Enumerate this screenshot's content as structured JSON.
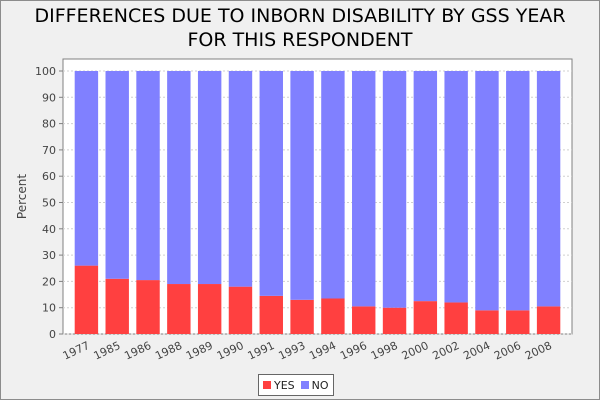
{
  "chart_data": {
    "type": "bar",
    "stacked": true,
    "title": "DIFFERENCES DUE TO INBORN DISABILITY BY GSS YEAR\nFOR THIS RESPONDENT",
    "xlabel": "",
    "ylabel": "Percent",
    "ylim": [
      0,
      100
    ],
    "yticks": [
      0,
      10,
      20,
      30,
      40,
      50,
      60,
      70,
      80,
      90,
      100
    ],
    "grid": true,
    "legend_position": "bottom-center",
    "categories": [
      "1977",
      "1985",
      "1986",
      "1988",
      "1989",
      "1990",
      "1991",
      "1993",
      "1994",
      "1996",
      "1998",
      "2000",
      "2002",
      "2004",
      "2006",
      "2008"
    ],
    "series": [
      {
        "name": "YES",
        "color": "#ff4040",
        "values": [
          26,
          21,
          20.5,
          19,
          19,
          18,
          14.5,
          13,
          13.5,
          10.5,
          10,
          12.5,
          12,
          9,
          9,
          10.5
        ]
      },
      {
        "name": "NO",
        "color": "#8080ff",
        "values": [
          74,
          79,
          79.5,
          81,
          81,
          82,
          85.5,
          87,
          86.5,
          89.5,
          90,
          87.5,
          88,
          91,
          91,
          89.5
        ]
      }
    ]
  }
}
